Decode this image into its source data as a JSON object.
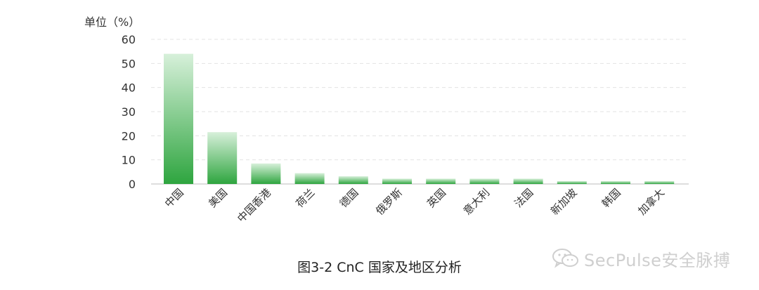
{
  "chart_data": {
    "type": "bar",
    "unit_label": "单位（%）",
    "categories": [
      "中国",
      "美国",
      "中国香港",
      "荷兰",
      "德国",
      "俄罗斯",
      "英国",
      "意大利",
      "法国",
      "新加坡",
      "韩国",
      "加拿大"
    ],
    "values": [
      54,
      21.5,
      8.5,
      4.5,
      3.2,
      2.2,
      2.2,
      2.2,
      2.2,
      1.2,
      1.2,
      1.2
    ],
    "ylim": [
      0,
      60
    ],
    "yticks": [
      0,
      10,
      20,
      30,
      40,
      50,
      60
    ],
    "grid": true,
    "bar_color_top": "#d7f0da",
    "bar_color_bottom": "#2ea53f"
  },
  "caption": "图3-2  CnC 国家及地区分析",
  "watermark": {
    "text": "SecPulse安全脉搏",
    "icon": "wechat-icon"
  }
}
